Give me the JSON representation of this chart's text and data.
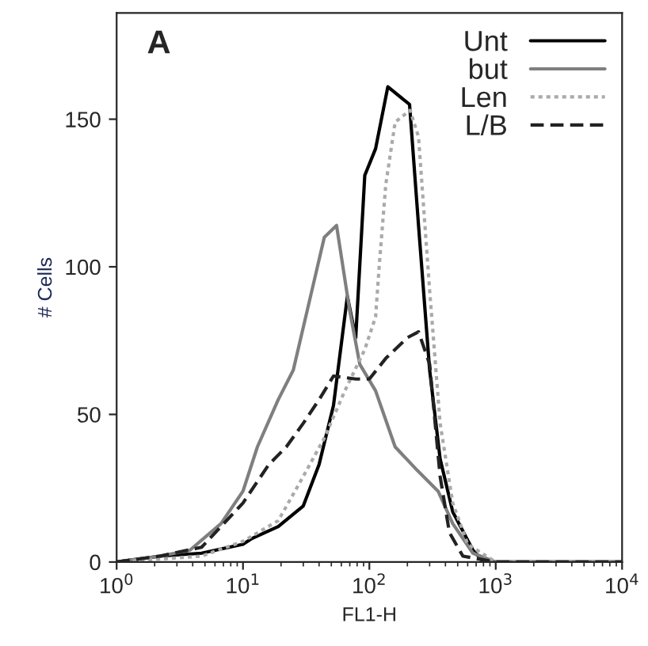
{
  "chart_data": {
    "type": "line",
    "xlabel": "FL1-H",
    "ylabel": "# Cells",
    "log": "x",
    "xlim": [
      1,
      10000
    ],
    "xticks": [
      {
        "value": 1,
        "label": "10$^{0}$"
      },
      {
        "value": 10,
        "label": "10$^{1}$"
      },
      {
        "value": 100,
        "label": "10$^{2}$"
      },
      {
        "value": 1000,
        "label": "10$^{3}$"
      },
      {
        "value": 10000,
        "label": "10$^{4}$"
      }
    ],
    "ylim": [
      0,
      186
    ],
    "yticks": [
      0,
      50,
      100,
      150
    ],
    "grid": false,
    "legend": "top right",
    "annotations": [
      "A"
    ],
    "series": [
      {
        "name": "Unt",
        "color": "#000000",
        "line_style": "solid",
        "x": [
          1,
          2.2,
          4.7,
          10,
          11.8,
          19,
          30,
          40,
          52,
          67,
          78,
          92,
          112,
          140,
          208,
          245,
          300,
          363,
          457,
          660,
          800,
          10000
        ],
        "values": [
          0,
          2,
          3,
          6,
          8,
          12,
          19,
          33,
          53,
          90,
          76,
          131,
          140,
          161,
          155,
          114,
          65,
          35,
          17,
          4,
          0,
          0
        ]
      },
      {
        "name": "but",
        "color": "#7f7f7f",
        "line_style": "solid",
        "x": [
          1,
          2.2,
          3.8,
          6.7,
          10,
          13,
          19,
          25,
          36,
          44,
          55,
          70,
          84,
          112,
          160,
          240,
          350,
          457,
          660,
          1000,
          10000
        ],
        "values": [
          0,
          2,
          4,
          13,
          24,
          39,
          55,
          65,
          94,
          110,
          114,
          85,
          67,
          58,
          39,
          31,
          24,
          13,
          3,
          0,
          0
        ]
      },
      {
        "name": "Len",
        "color": "#aaaaaa",
        "line_style": "dotted",
        "x": [
          1,
          2.2,
          4.7,
          10,
          19,
          30,
          44,
          64,
          92,
          112,
          120,
          135,
          160,
          210,
          245,
          300,
          363,
          457,
          600,
          1000,
          10000
        ],
        "values": [
          0,
          1,
          2,
          7,
          14,
          29,
          42,
          58,
          72,
          83,
          101,
          128,
          149,
          153,
          144,
          92,
          47,
          20,
          6,
          0,
          0
        ]
      },
      {
        "name": "L/B",
        "color": "#222222",
        "line_style": "dashed",
        "x": [
          1,
          2.2,
          4.7,
          10,
          16,
          22,
          30,
          40,
          52,
          78,
          100,
          135,
          200,
          245,
          300,
          363,
          430,
          550,
          1000,
          10000
        ],
        "values": [
          0,
          2,
          5,
          20,
          33,
          39,
          47,
          55,
          63,
          62,
          62,
          69,
          76,
          78,
          67,
          29,
          10,
          2,
          0,
          0
        ]
      }
    ]
  }
}
